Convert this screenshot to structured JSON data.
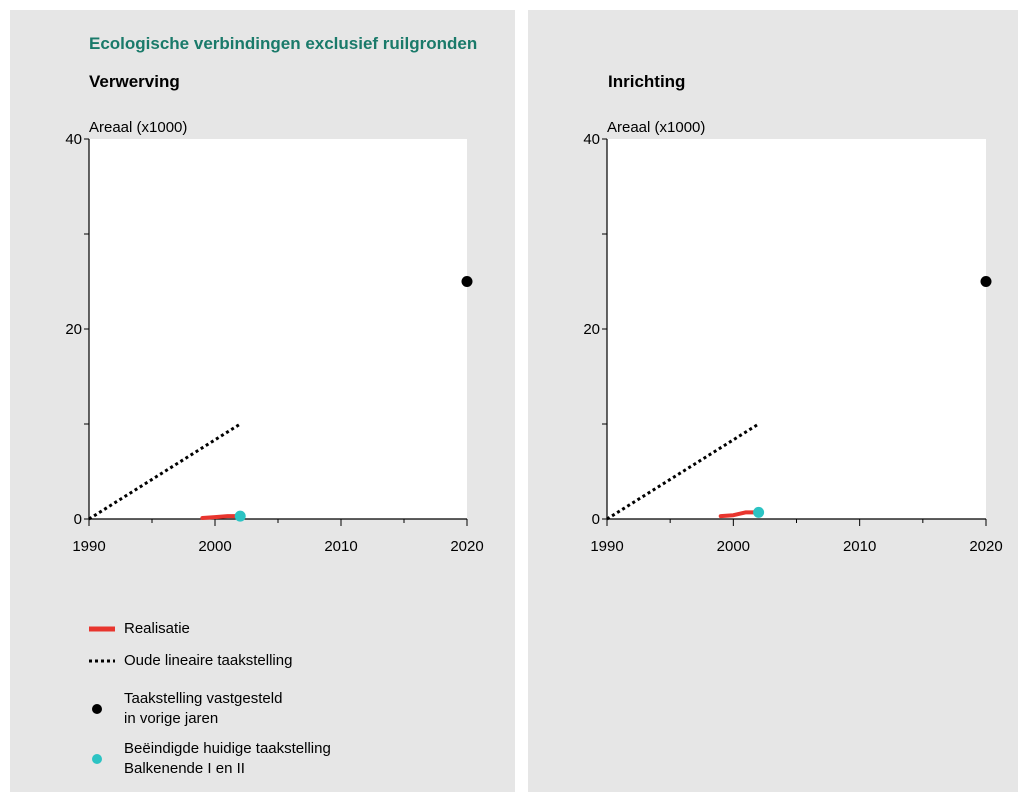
{
  "title": "Ecologische verbindingen exclusief ruilgronden",
  "colors": {
    "panel_bg": "#e6e6e6",
    "plot_bg": "#ffffff",
    "title": "#1a7a6a",
    "realisatie": "#e8352e",
    "huidige": "#2cc3c3",
    "vastgesteld": "#000000",
    "oude": "#000000"
  },
  "legend": {
    "realisatie": "Realisatie",
    "oude": "Oude lineaire taakstelling",
    "vastgesteld_line1": "Taakstelling vastgesteld",
    "vastgesteld_line2": "in vorige jaren",
    "huidige_line1": "Beëindigde huidige taakstelling",
    "huidige_line2": "Balkenende I en II"
  },
  "chart_data": [
    {
      "type": "line",
      "title": "Verwerving",
      "ylabel": "Areaal (x1000)",
      "xlim": [
        1990,
        2020
      ],
      "ylim": [
        0,
        40
      ],
      "x_ticks": [
        1990,
        2000,
        2010,
        2020
      ],
      "y_ticks": [
        0,
        20,
        40
      ],
      "series": [
        {
          "name": "Oude lineaire taakstelling",
          "x": [
            1990,
            2002
          ],
          "y": [
            0,
            10
          ]
        },
        {
          "name": "Realisatie",
          "x": [
            1999,
            2000,
            2001,
            2002
          ],
          "y": [
            0.1,
            0.2,
            0.3,
            0.3
          ]
        }
      ],
      "points": [
        {
          "name": "Taakstelling vastgesteld in vorige jaren",
          "x": 2020,
          "y": 25
        },
        {
          "name": "Beëindigde huidige taakstelling Balkenende I en II",
          "x": 2002,
          "y": 0.3
        }
      ]
    },
    {
      "type": "line",
      "title": "Inrichting",
      "ylabel": "Areaal (x1000)",
      "xlim": [
        1990,
        2020
      ],
      "ylim": [
        0,
        40
      ],
      "x_ticks": [
        1990,
        2000,
        2010,
        2020
      ],
      "y_ticks": [
        0,
        20,
        40
      ],
      "series": [
        {
          "name": "Oude lineaire taakstelling",
          "x": [
            1990,
            2002
          ],
          "y": [
            0,
            10
          ]
        },
        {
          "name": "Realisatie",
          "x": [
            1999,
            2000,
            2001,
            2002
          ],
          "y": [
            0.3,
            0.4,
            0.7,
            0.7
          ]
        }
      ],
      "points": [
        {
          "name": "Taakstelling vastgesteld in vorige jaren",
          "x": 2020,
          "y": 25
        },
        {
          "name": "Beëindigde huidige taakstelling Balkenende I en II",
          "x": 2002,
          "y": 0.7
        }
      ]
    }
  ]
}
